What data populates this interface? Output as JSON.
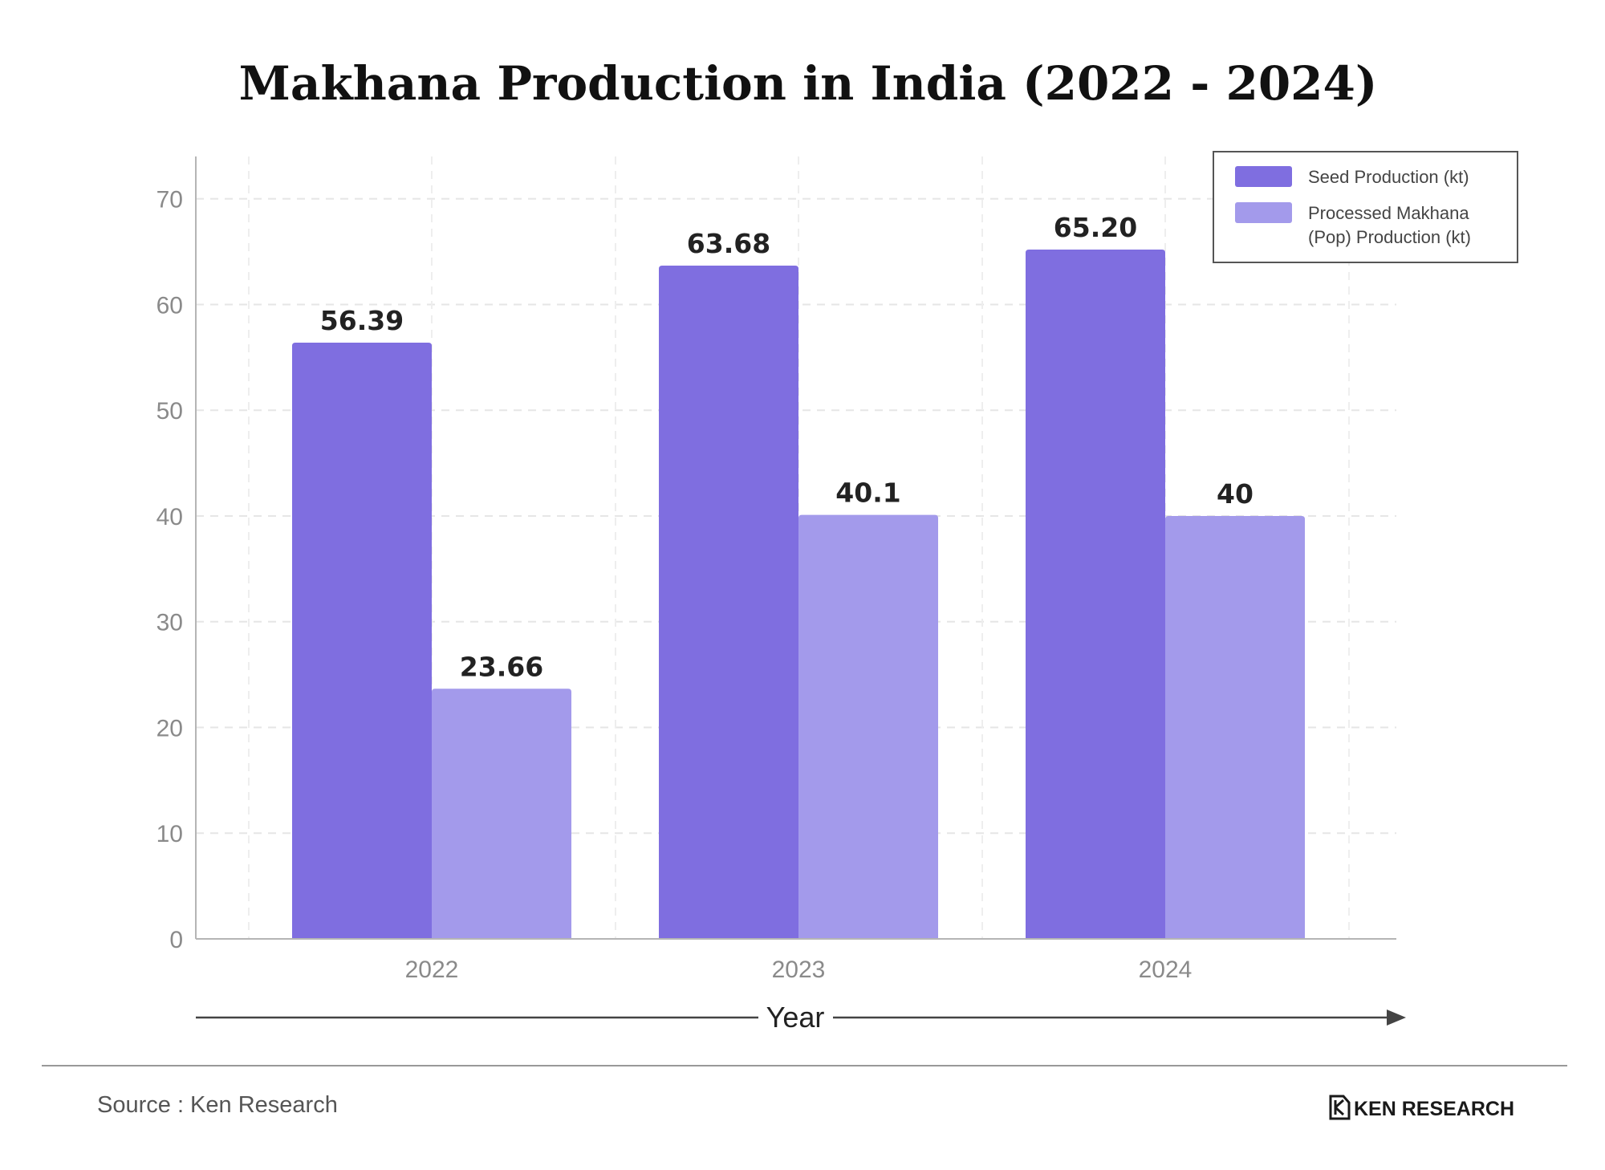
{
  "chart_data": {
    "type": "bar",
    "title": "Makhana Production in India (2022 - 2024)",
    "xlabel": "Year",
    "ylabel": "",
    "categories": [
      "2022",
      "2023",
      "2024"
    ],
    "series": [
      {
        "name": "Seed Production (kt)",
        "values": [
          56.39,
          63.68,
          65.2
        ],
        "labels": [
          "56.39",
          "63.68",
          "65.20"
        ],
        "color": "#7f6ee0"
      },
      {
        "name": "Processed Makhana (Pop) Production (kt)",
        "name_lines": [
          "Processed Makhana",
          "(Pop) Production (kt)"
        ],
        "values": [
          23.66,
          40.1,
          40
        ],
        "labels": [
          "23.66",
          "40.1",
          "40"
        ],
        "color": "#a39aeb"
      }
    ],
    "ylim": [
      0,
      74
    ],
    "yticks": [
      0,
      10,
      20,
      30,
      40,
      50,
      60,
      70
    ],
    "grid": true,
    "legend_position": "top-right"
  },
  "source_text": "Source : Ken Research",
  "brand": {
    "name": "KEN RESEARCH",
    "icon": "ken-research-logo-icon"
  }
}
